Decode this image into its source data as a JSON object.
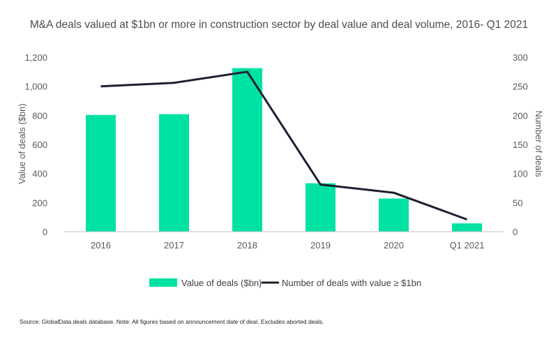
{
  "chart_data": {
    "type": "bar",
    "title": "M&A deals valued at $1bn or more in construction sector by deal value and deal volume, 2016- Q1 2021",
    "categories": [
      "2016",
      "2017",
      "2018",
      "2019",
      "2020",
      "Q1 2021"
    ],
    "series": [
      {
        "name": "Value of deals ($bn)",
        "type": "bar",
        "axis": "left",
        "values": [
          803,
          808,
          1125,
          333,
          228,
          57
        ]
      },
      {
        "name": "Number of deals with value ≥ $1bn",
        "type": "line",
        "axis": "right",
        "values": [
          250,
          256,
          275,
          81,
          67,
          21
        ]
      }
    ],
    "ylabel": "Value of deals ($bn)",
    "ylabel_right": "Number of deals",
    "ylim": [
      0,
      1200
    ],
    "ylim_right": [
      0,
      300
    ],
    "yticks": [
      "0",
      "200",
      "400",
      "600",
      "800",
      "1,000",
      "1,200"
    ],
    "yticks_right": [
      "0",
      "50",
      "100",
      "150",
      "200",
      "250",
      "300"
    ],
    "grid": false,
    "legend_position": "bottom",
    "colors": {
      "bar": "#00e2a4",
      "line": "#1e1e32",
      "axis": "#bfbfbf"
    }
  },
  "source": "Source: GlobalData deals database. Note: All figures based on announcement date of deal. Excludes aborted deals."
}
